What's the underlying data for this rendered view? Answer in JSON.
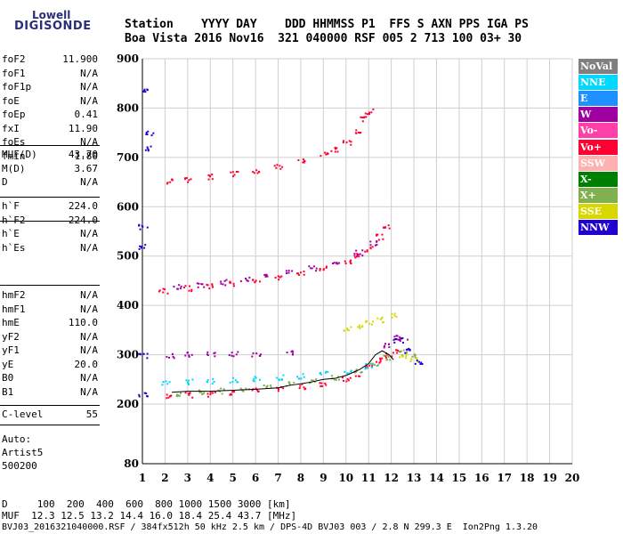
{
  "logo": {
    "line1": "Lowell",
    "line2": "DIGISONDE"
  },
  "header": {
    "row1": "Station    YYYY DAY    DDD HHMMSS P1  FFS S AXN PPS IGA PS",
    "row2": "Boa Vista 2016 Nov16  321 040000 RSF 005 2 713 100 03+ 30"
  },
  "params_group1": [
    {
      "name": "foF2",
      "value": "11.900"
    },
    {
      "name": "foF1",
      "value": "N/A"
    },
    {
      "name": "foF1p",
      "value": "N/A"
    },
    {
      "name": "foE",
      "value": "N/A"
    },
    {
      "name": "foEp",
      "value": "0.41"
    },
    {
      "name": "fxI",
      "value": "11.90"
    },
    {
      "name": "foEs",
      "value": "N/A"
    },
    {
      "name": "fmin",
      "value": "1.80"
    }
  ],
  "params_group2": [
    {
      "name": "MUF(D)",
      "value": "43.70"
    },
    {
      "name": "M(D)",
      "value": "3.67"
    },
    {
      "name": "D",
      "value": "N/A"
    }
  ],
  "params_group3": [
    {
      "name": "h`F",
      "value": "224.0"
    },
    {
      "name": "h`F2",
      "value": "224.0"
    },
    {
      "name": "h`E",
      "value": "N/A"
    },
    {
      "name": "h`Es",
      "value": "N/A"
    }
  ],
  "params_group4": [
    {
      "name": "hmF2",
      "value": "N/A"
    },
    {
      "name": "hmF1",
      "value": "N/A"
    },
    {
      "name": "hmE",
      "value": "110.0"
    },
    {
      "name": "yF2",
      "value": "N/A"
    },
    {
      "name": "yF1",
      "value": "N/A"
    },
    {
      "name": "yE",
      "value": "20.0"
    },
    {
      "name": "B0",
      "value": "N/A"
    },
    {
      "name": "B1",
      "value": "N/A"
    }
  ],
  "params_group5": [
    {
      "name": "C-level",
      "value": "55"
    }
  ],
  "auto": {
    "line1": "Auto:",
    "line2": "Artist5",
    "line3": "500200"
  },
  "legend": [
    {
      "label": "NoVal",
      "color": "#808080"
    },
    {
      "label": "NNE",
      "color": "#00d8ff"
    },
    {
      "label": "E",
      "color": "#1f90ff"
    },
    {
      "label": "W",
      "color": "#a000a0"
    },
    {
      "label": "Vo-",
      "color": "#ff40a8"
    },
    {
      "label": "Vo+",
      "color": "#ff0030"
    },
    {
      "label": "SSW",
      "color": "#ffb0b0"
    },
    {
      "label": "X-",
      "color": "#008000"
    },
    {
      "label": "X+",
      "color": "#80b050"
    },
    {
      "label": "SSE",
      "color": "#d8d800"
    },
    {
      "label": "NNW",
      "color": "#2000d0"
    }
  ],
  "footer": {
    "line1": "D     100  200  400  600  800 1000 1500 3000 [km]",
    "line2": "MUF  12.3 12.5 13.2 14.4 16.0 18.4 25.4 43.7 [MHz]",
    "line3": "BVJ03_2016321040000.RSF / 384fx512h 50 kHz 2.5 km / DPS-4D BVJ03 003 / 2.8 N 299.3 E  Ion2Png 1.3.20"
  },
  "chart_data": {
    "type": "scatter",
    "title": "",
    "xlabel": "",
    "ylabel": "",
    "xlim": [
      1,
      20
    ],
    "ylim": [
      80,
      900
    ],
    "x_ticks": [
      1,
      2,
      3,
      4,
      5,
      6,
      7,
      8,
      9,
      10,
      11,
      12,
      13,
      14,
      15,
      16,
      17,
      18,
      19,
      20
    ],
    "y_ticks": [
      80,
      200,
      300,
      400,
      500,
      600,
      700,
      800,
      900
    ],
    "series": [
      {
        "name": "Vo+",
        "color": "#ff0030",
        "points": [
          [
            2.2,
            218
          ],
          [
            3,
            220
          ],
          [
            4,
            222
          ],
          [
            5,
            225
          ],
          [
            6,
            229
          ],
          [
            7,
            232
          ],
          [
            8,
            237
          ],
          [
            9,
            243
          ],
          [
            10,
            252
          ],
          [
            10.5,
            262
          ],
          [
            11,
            275
          ],
          [
            11.5,
            290
          ],
          [
            11.9,
            300
          ],
          [
            12.2,
            310
          ]
        ]
      },
      {
        "name": "X+",
        "color": "#80b050",
        "points": [
          [
            2.5,
            223
          ],
          [
            3.5,
            225
          ],
          [
            4.5,
            228
          ],
          [
            5.5,
            232
          ],
          [
            6.5,
            236
          ],
          [
            7.5,
            241
          ],
          [
            8.5,
            247
          ],
          [
            9.5,
            256
          ],
          [
            10.5,
            268
          ],
          [
            11.2,
            282
          ],
          [
            11.8,
            296
          ],
          [
            12.5,
            306
          ],
          [
            13,
            298
          ]
        ]
      },
      {
        "name": "Vo+ 2-hop",
        "color": "#ff0030",
        "points": [
          [
            1.9,
            430
          ],
          [
            3,
            436
          ],
          [
            4,
            441
          ],
          [
            5,
            446
          ],
          [
            6,
            452
          ],
          [
            7,
            458
          ],
          [
            8,
            466
          ],
          [
            9,
            476
          ],
          [
            10,
            490
          ],
          [
            10.5,
            502
          ],
          [
            11,
            516
          ],
          [
            11.5,
            540
          ],
          [
            11.8,
            560
          ]
        ]
      },
      {
        "name": "W 2-hop",
        "color": "#a000a0",
        "points": [
          [
            2.5,
            438
          ],
          [
            3.5,
            443
          ],
          [
            4.5,
            448
          ],
          [
            5.5,
            454
          ],
          [
            6.5,
            460
          ],
          [
            7.5,
            468
          ],
          [
            8.5,
            477
          ],
          [
            9.5,
            490
          ],
          [
            10.5,
            508
          ],
          [
            11.2,
            528
          ]
        ]
      },
      {
        "name": "Vo+ 3-hop",
        "color": "#ff0030",
        "points": [
          [
            2.2,
            652
          ],
          [
            3,
            656
          ],
          [
            4,
            662
          ],
          [
            5,
            668
          ],
          [
            6,
            675
          ],
          [
            7,
            683
          ],
          [
            8,
            694
          ],
          [
            9,
            708
          ],
          [
            9.5,
            718
          ],
          [
            10,
            730
          ],
          [
            10.5,
            752
          ],
          [
            10.8,
            780
          ],
          [
            11,
            795
          ]
        ]
      },
      {
        "name": "NNE",
        "color": "#00d8ff",
        "points": [
          [
            2,
            245
          ],
          [
            3,
            246
          ],
          [
            4,
            248
          ],
          [
            5,
            250
          ],
          [
            6,
            252
          ],
          [
            7,
            255
          ],
          [
            8,
            258
          ],
          [
            9,
            262
          ],
          [
            10,
            268
          ],
          [
            11,
            278
          ]
        ]
      },
      {
        "name": "W",
        "color": "#a000a0",
        "points": [
          [
            2.2,
            300
          ],
          [
            3,
            301
          ],
          [
            4,
            302
          ],
          [
            5,
            303
          ],
          [
            6,
            302
          ],
          [
            7.5,
            305
          ],
          [
            11.7,
            320
          ],
          [
            12.2,
            335
          ],
          [
            12.5,
            330
          ]
        ]
      },
      {
        "name": "SSE",
        "color": "#d8d800",
        "points": [
          [
            10,
            355
          ],
          [
            10.5,
            358
          ],
          [
            11,
            365
          ],
          [
            11.5,
            372
          ],
          [
            12,
            380
          ],
          [
            12.5,
            300
          ],
          [
            13,
            290
          ]
        ]
      },
      {
        "name": "NNW",
        "color": "#2000d0",
        "points": [
          [
            1,
            840
          ],
          [
            1.3,
            750
          ],
          [
            1.3,
            720
          ],
          [
            1,
            560
          ],
          [
            1,
            520
          ],
          [
            1,
            300
          ],
          [
            1,
            220
          ],
          [
            12.3,
            330
          ],
          [
            12.7,
            310
          ],
          [
            13.2,
            285
          ]
        ]
      }
    ],
    "trace_line": {
      "color": "#000000",
      "points": [
        [
          2.3,
          224
        ],
        [
          3,
          226
        ],
        [
          4,
          226
        ],
        [
          5,
          228
        ],
        [
          6,
          230
        ],
        [
          7,
          233
        ],
        [
          7.5,
          238
        ],
        [
          8,
          241
        ],
        [
          8.5,
          245
        ],
        [
          9,
          250
        ],
        [
          9.5,
          252
        ],
        [
          10,
          258
        ],
        [
          10.3,
          264
        ],
        [
          10.6,
          270
        ],
        [
          11,
          282
        ],
        [
          11.3,
          300
        ],
        [
          11.6,
          308
        ],
        [
          11.9,
          300
        ],
        [
          12.1,
          290
        ]
      ]
    }
  }
}
